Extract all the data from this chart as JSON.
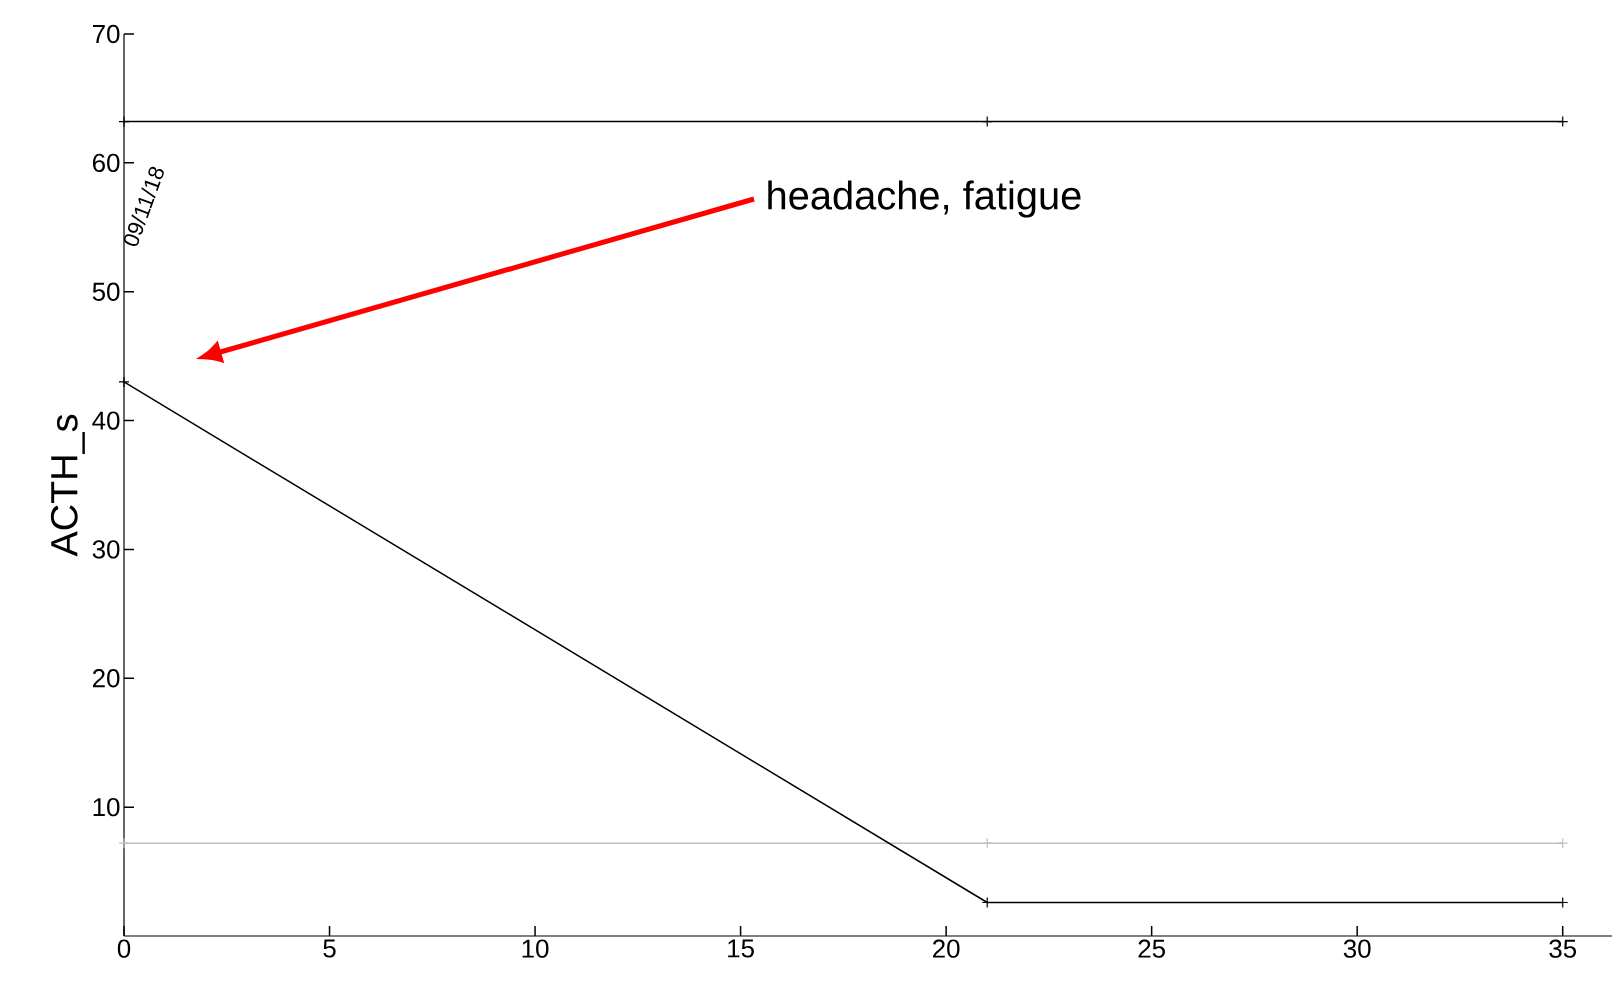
{
  "chart_data": {
    "type": "line",
    "ylabel": "ACTH_s",
    "x": [
      0,
      21,
      35
    ],
    "series": [
      {
        "color": "#000000",
        "values": [
          63.2,
          63.2,
          63.2
        ]
      },
      {
        "color": "#c0c0c0",
        "values": [
          7.2,
          7.2,
          7.2
        ]
      },
      {
        "color": "#000000",
        "values": [
          43,
          2.6,
          2.6
        ]
      }
    ],
    "xlim": [
      0,
      36.2
    ],
    "ylim": [
      0,
      70
    ],
    "xticks": [
      0,
      5,
      10,
      15,
      20,
      25,
      30,
      35
    ],
    "yticks": [
      10,
      20,
      30,
      40,
      50,
      60,
      70
    ],
    "marker": "cross",
    "line_style": "solid",
    "annotations": [
      "09/11/18",
      "headache, fatigue"
    ]
  }
}
